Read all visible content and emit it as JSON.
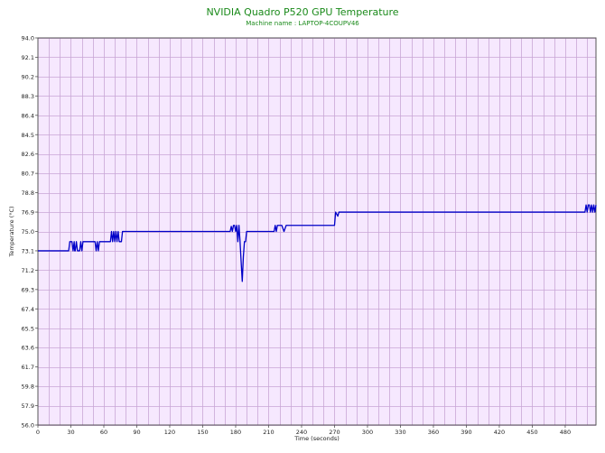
{
  "chart_data": {
    "type": "line",
    "title": "NVIDIA Quadro P520 GPU Temperature",
    "subtitle": "Machine name : LAPTOP-4COUPV46",
    "xlabel": "Time (seconds)",
    "ylabel": "Temperature (°C)",
    "xlim": [
      0,
      508
    ],
    "ylim": [
      56.0,
      94.0
    ],
    "x_ticks": [
      0,
      30,
      60,
      90,
      120,
      150,
      180,
      210,
      240,
      270,
      300,
      330,
      360,
      390,
      420,
      450,
      480
    ],
    "y_ticks": [
      "56.0",
      "57.9",
      "59.8",
      "61.7",
      "63.6",
      "65.5",
      "67.4",
      "69.3",
      "71.2",
      "73.1",
      "75.0",
      "76.9",
      "78.8",
      "80.7",
      "82.6",
      "84.5",
      "86.4",
      "88.3",
      "90.2",
      "92.1",
      "94.0"
    ],
    "grid": true,
    "colors": {
      "plot_background": "#f6e8fe",
      "grid": "#c9a6d6",
      "line": "#0000c8",
      "title": "#1a8a1a"
    },
    "series": [
      {
        "name": "",
        "x": [
          0,
          28,
          29,
          31,
          32,
          33,
          33.5,
          34,
          35,
          36,
          37,
          38,
          39,
          40,
          41,
          43,
          44,
          52,
          53,
          54,
          55,
          56,
          57,
          66,
          67,
          68,
          69,
          70,
          71,
          72,
          73,
          74,
          76,
          77,
          78,
          175,
          176,
          177,
          178,
          179,
          180,
          181,
          182,
          183,
          184,
          185,
          186,
          187,
          188,
          189,
          190,
          191,
          215,
          216,
          217,
          218,
          220,
          222,
          224,
          226,
          227,
          228,
          229,
          230,
          270,
          271,
          273,
          274,
          275,
          498,
          499,
          500,
          501,
          502,
          503,
          504,
          505,
          506,
          507,
          508
        ],
        "y": [
          73.1,
          73.1,
          74.0,
          74.0,
          73.1,
          74.0,
          73.1,
          73.1,
          74.0,
          73.1,
          73.1,
          73.1,
          74.0,
          73.1,
          74.0,
          74.0,
          74.0,
          74.0,
          73.1,
          74.0,
          73.1,
          74.0,
          74.0,
          74.0,
          75.0,
          74.0,
          75.0,
          74.0,
          75.0,
          74.0,
          75.0,
          74.0,
          74.0,
          75.0,
          75.0,
          75.0,
          75.5,
          75.0,
          75.6,
          75.6,
          75.0,
          75.6,
          74.0,
          75.6,
          74.0,
          72.0,
          70.1,
          72.5,
          74.0,
          74.0,
          75.0,
          75.0,
          75.0,
          75.6,
          75.0,
          75.6,
          75.6,
          75.6,
          75.0,
          75.6,
          75.6,
          75.6,
          75.6,
          75.6,
          75.6,
          76.9,
          76.5,
          76.9,
          76.9,
          76.9,
          77.6,
          76.9,
          77.6,
          77.6,
          76.9,
          77.6,
          76.9,
          77.6,
          76.9,
          77.6
        ]
      }
    ]
  }
}
